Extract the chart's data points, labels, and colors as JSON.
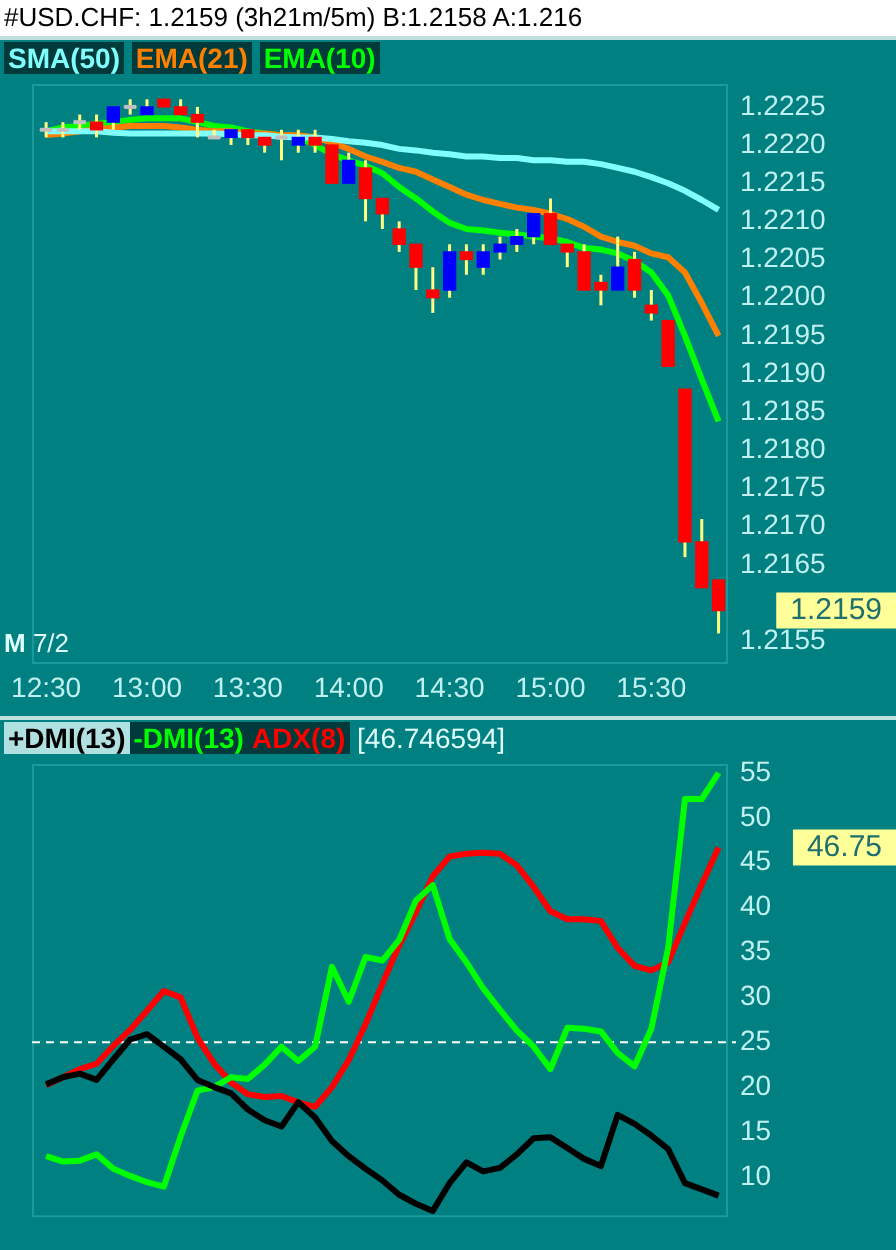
{
  "chart_data": [
    {
      "type": "candlestick",
      "title": "#USD.CHF: 1.2159 (3h21m/5m) B:1.2158 A:1.216",
      "x": [
        12.5,
        12.5833,
        12.6667,
        12.75,
        12.8333,
        12.9167,
        13,
        13.0833,
        13.1667,
        13.25,
        13.3333,
        13.4167,
        13.5,
        13.5833,
        13.6667,
        13.75,
        13.8333,
        13.9167,
        14,
        14.0833,
        14.1667,
        14.25,
        14.3333,
        14.4167,
        14.5,
        14.5833,
        14.6667,
        14.75,
        14.8333,
        14.9167,
        15,
        15.0833,
        15.1667,
        15.25,
        15.3333,
        15.4167,
        15.5,
        15.5833,
        15.6667,
        15.75,
        15.8333
      ],
      "ohlc": [
        [
          1.2222,
          1.2223,
          1.2221,
          1.2222
        ],
        [
          1.2222,
          1.2223,
          1.2221,
          1.2222
        ],
        [
          1.2223,
          1.2224,
          1.2222,
          1.2223
        ],
        [
          1.2223,
          1.2224,
          1.2221,
          1.2222
        ],
        [
          1.2223,
          1.2225,
          1.2222,
          1.2225
        ],
        [
          1.2225,
          1.2226,
          1.2224,
          1.2225
        ],
        [
          1.2224,
          1.2226,
          1.2224,
          1.2225
        ],
        [
          1.2226,
          1.2226,
          1.2225,
          1.2225
        ],
        [
          1.2225,
          1.2226,
          1.2224,
          1.2224
        ],
        [
          1.2224,
          1.2225,
          1.2221,
          1.2223
        ],
        [
          1.2221,
          1.2222,
          1.2221,
          1.2221
        ],
        [
          1.2221,
          1.2222,
          1.222,
          1.2222
        ],
        [
          1.2222,
          1.2222,
          1.222,
          1.2221
        ],
        [
          1.2221,
          1.2221,
          1.2219,
          1.222
        ],
        [
          1.2221,
          1.2222,
          1.2218,
          1.2221
        ],
        [
          1.222,
          1.2222,
          1.2219,
          1.2221
        ],
        [
          1.2221,
          1.2222,
          1.2219,
          1.222
        ],
        [
          1.222,
          1.222,
          1.2215,
          1.2215
        ],
        [
          1.2215,
          1.2219,
          1.2215,
          1.2218
        ],
        [
          1.2217,
          1.2218,
          1.221,
          1.2213
        ],
        [
          1.2213,
          1.2213,
          1.2209,
          1.2211
        ],
        [
          1.2209,
          1.221,
          1.2206,
          1.2207
        ],
        [
          1.2207,
          1.2207,
          1.2201,
          1.2204
        ],
        [
          1.2201,
          1.2204,
          1.2198,
          1.22
        ],
        [
          1.2201,
          1.2207,
          1.22,
          1.2206
        ],
        [
          1.2206,
          1.2207,
          1.2203,
          1.2205
        ],
        [
          1.2204,
          1.2207,
          1.2203,
          1.2206
        ],
        [
          1.2206,
          1.2208,
          1.2205,
          1.2207
        ],
        [
          1.2207,
          1.2209,
          1.2206,
          1.2208
        ],
        [
          1.2208,
          1.2211,
          1.2207,
          1.2211
        ],
        [
          1.2211,
          1.2213,
          1.2207,
          1.2207
        ],
        [
          1.2207,
          1.2207,
          1.2204,
          1.2206
        ],
        [
          1.2206,
          1.2207,
          1.2201,
          1.2201
        ],
        [
          1.2202,
          1.2203,
          1.2199,
          1.2201
        ],
        [
          1.2201,
          1.2208,
          1.2201,
          1.2204
        ],
        [
          1.2205,
          1.2206,
          1.22,
          1.2201
        ],
        [
          1.2199,
          1.2201,
          1.2197,
          1.2198
        ],
        [
          1.2197,
          1.2197,
          1.2191,
          1.2191
        ],
        [
          1.2188,
          1.2188,
          1.2166,
          1.2168
        ],
        [
          1.2168,
          1.2171,
          1.2162,
          1.2162
        ],
        [
          1.2163,
          1.2163,
          1.2156,
          1.2159
        ]
      ],
      "colors": [
        "#c0c0c0",
        "#c0c0c0",
        "#c0c0c0",
        "#ff0000",
        "#0000ff",
        "#c0c0c0",
        "#0000ff",
        "#ff0000",
        "#ff0000",
        "#ff0000",
        "#c0c0c0",
        "#0000ff",
        "#ff0000",
        "#ff0000",
        "#c0c0c0",
        "#0000ff",
        "#ff0000",
        "#ff0000",
        "#0000ff",
        "#ff0000",
        "#ff0000",
        "#ff0000",
        "#ff0000",
        "#ff0000",
        "#0000ff",
        "#ff0000",
        "#0000ff",
        "#0000ff",
        "#0000ff",
        "#0000ff",
        "#ff0000",
        "#ff0000",
        "#ff0000",
        "#ff0000",
        "#0000ff",
        "#ff0000",
        "#ff0000",
        "#ff0000",
        "#ff0000",
        "#ff0000",
        "#ff0000"
      ],
      "series": [
        {
          "name": "SMA(50)",
          "type": "line",
          "color": "#80ffff",
          "values": [
            1.22218,
            1.22218,
            1.22218,
            1.22218,
            1.22216,
            1.22215,
            1.22215,
            1.22215,
            1.22215,
            1.22215,
            1.22215,
            1.22214,
            1.22213,
            1.22213,
            1.22211,
            1.2221,
            1.2221,
            1.22208,
            1.22205,
            1.22203,
            1.222,
            1.22195,
            1.22193,
            1.2219,
            1.22188,
            1.22185,
            1.22185,
            1.22183,
            1.22183,
            1.2218,
            1.2218,
            1.22178,
            1.22178,
            1.22175,
            1.2217,
            1.22165,
            1.22158,
            1.2215,
            1.2214,
            1.22128,
            1.22115
          ]
        },
        {
          "name": "EMA(21)",
          "type": "line",
          "color": "#ff8000",
          "values": [
            1.22213,
            1.22215,
            1.22218,
            1.2222,
            1.22223,
            1.22225,
            1.22225,
            1.22225,
            1.22223,
            1.2222,
            1.22218,
            1.22218,
            1.22215,
            1.22215,
            1.22213,
            1.22213,
            1.2221,
            1.22203,
            1.22195,
            1.22185,
            1.22178,
            1.2217,
            1.22165,
            1.22155,
            1.22145,
            1.22135,
            1.22128,
            1.22123,
            1.22118,
            1.22115,
            1.2211,
            1.22103,
            1.22093,
            1.2208,
            1.22073,
            1.22068,
            1.22058,
            1.22053,
            1.22033,
            1.21993,
            1.2195
          ]
        },
        {
          "name": "EMA(10)",
          "type": "line",
          "color": "#00ff00",
          "values": [
            1.22218,
            1.22223,
            1.22225,
            1.22228,
            1.2223,
            1.22233,
            1.22235,
            1.22235,
            1.22235,
            1.2223,
            1.22225,
            1.22223,
            1.22218,
            1.22215,
            1.22213,
            1.2221,
            1.222,
            1.22188,
            1.2218,
            1.22173,
            1.22163,
            1.22145,
            1.2213,
            1.22113,
            1.22098,
            1.2209,
            1.22088,
            1.22085,
            1.22083,
            1.2208,
            1.22078,
            1.22073,
            1.22065,
            1.22063,
            1.22058,
            1.22048,
            1.22033,
            1.22003,
            1.2195,
            1.21893,
            1.21838
          ]
        }
      ],
      "xlim": [
        12.43,
        15.88
      ],
      "xticks": [
        {
          "value": 12.5,
          "label": "12:30"
        },
        {
          "value": 13,
          "label": "13:00"
        },
        {
          "value": 13.5,
          "label": "13:30"
        },
        {
          "value": 14,
          "label": "14:00"
        },
        {
          "value": 14.5,
          "label": "14:30"
        },
        {
          "value": 15,
          "label": "15:00"
        },
        {
          "value": 15.5,
          "label": "15:30"
        }
      ],
      "ylim": [
        1.2152,
        1.2228
      ],
      "yticks": [
        1.2155,
        1.2165,
        {
          "value": 1.217,
          "label": "1.2170"
        },
        1.2175,
        {
          "value": 1.218,
          "label": "1.2180"
        },
        1.2185,
        {
          "value": 1.219,
          "label": "1.2190"
        },
        1.2195,
        {
          "value": 1.22,
          "label": "1.2200"
        },
        1.2205,
        {
          "value": 1.221,
          "label": "1.2210"
        },
        1.2215,
        {
          "value": 1.222,
          "label": "1.2220"
        },
        1.2225
      ],
      "legend": "top left",
      "grid": false,
      "annotations": [
        "M 7/2",
        "1.2159"
      ]
    },
    {
      "type": "line",
      "x": [
        12.5,
        12.5833,
        12.6667,
        12.75,
        12.8333,
        12.9167,
        13,
        13.0833,
        13.1667,
        13.25,
        13.3333,
        13.4167,
        13.5,
        13.5833,
        13.6667,
        13.75,
        13.8333,
        13.9167,
        14,
        14.0833,
        14.1667,
        14.25,
        14.3333,
        14.4167,
        14.5,
        14.5833,
        14.6667,
        14.75,
        14.8333,
        14.9167,
        15,
        15.0833,
        15.1667,
        15.25,
        15.3333,
        15.4167,
        15.5,
        15.5833,
        15.6667,
        15.75,
        15.8333
      ],
      "series": [
        {
          "name": "+DMI(13)",
          "color": "#000000",
          "values": [
            20.3,
            21.1,
            21.5,
            20.8,
            23.1,
            25.3,
            25.9,
            24.5,
            23.1,
            20.8,
            20,
            19.3,
            17.5,
            16.3,
            15.6,
            18.3,
            16.6,
            14,
            12.3,
            10.9,
            9.6,
            8,
            7,
            6.2,
            9.3,
            11.6,
            10.6,
            11,
            12.5,
            14.3,
            14.4,
            13.2,
            12,
            11.2,
            16.9,
            15.9,
            14.6,
            13.1,
            9.3,
            8.6,
            7.9
          ]
        },
        {
          "name": "-DMI(13)",
          "color": "#00ff00",
          "values": [
            12.3,
            11.7,
            11.8,
            12.5,
            10.9,
            10.1,
            9.4,
            8.9,
            14.5,
            19.6,
            20,
            21.1,
            20.9,
            22.5,
            24.5,
            22.9,
            24.5,
            33.4,
            29.5,
            34.5,
            34.1,
            36.4,
            40.8,
            42.5,
            36.5,
            33.9,
            31,
            28.6,
            26.3,
            24.5,
            22,
            26.6,
            26.5,
            26.2,
            23.8,
            22.3,
            26.5,
            35.5,
            52.1,
            52.1,
            55
          ]
        },
        {
          "name": "ADX(8)",
          "color": "#ff0000",
          "values": [
            20.2,
            21.1,
            22,
            22.6,
            24.6,
            26.4,
            28.5,
            30.7,
            30,
            25.5,
            22.6,
            20.5,
            19.2,
            18.9,
            19,
            18.3,
            17.8,
            20,
            23,
            27,
            31.5,
            35.8,
            39.5,
            43.5,
            45.7,
            46,
            46.1,
            46,
            44.7,
            42.3,
            39.6,
            38.7,
            38.7,
            38.5,
            35.5,
            33.5,
            33,
            33.9,
            38.3,
            42.6,
            46.7
          ]
        }
      ],
      "xlim": [
        12.43,
        15.88
      ],
      "ylim": [
        5.5,
        56
      ],
      "yticks": [
        10,
        15,
        20,
        25,
        30,
        35,
        40,
        45,
        50,
        55
      ],
      "tick_labels": "y",
      "legend": "top left",
      "grid": false,
      "line_style": "solid",
      "ref_lines": [
        {
          "axis": "y",
          "value": 25,
          "color": "#ffffff",
          "line_style": "dashed"
        }
      ],
      "annotations": [
        "[46.746594]",
        "46.75"
      ]
    }
  ]
}
